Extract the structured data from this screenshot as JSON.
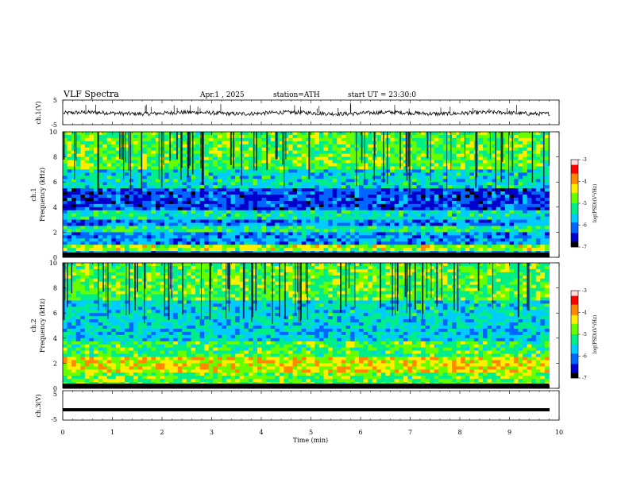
{
  "header": {
    "title": "VLF Spectra",
    "date": "Apr.1 , 2025",
    "station": "station=ATH",
    "start": "start UT = 23:30:0"
  },
  "colors": {
    "colormap": [
      "#000000",
      "#0000cc",
      "#0066ff",
      "#00ccff",
      "#00ee88",
      "#66ff00",
      "#ffee00",
      "#ff8800",
      "#ff0000",
      "#ffdddd"
    ],
    "trace": "#000000"
  },
  "chart_data": [
    {
      "type": "line",
      "panel": "ch1",
      "ylabel": "ch.1(V)",
      "ylim": [
        -5,
        5
      ],
      "yticks": [
        "5",
        "-5"
      ],
      "xlim": [
        0,
        10
      ],
      "series": [
        {
          "values_summary": "noisy waveform oscillating around -0.3 V with occasional spikes up to ~4 V"
        }
      ]
    },
    {
      "type": "heatmap",
      "panel": "ch1-spectrogram",
      "ylabel": [
        "ch.1",
        "Frequency (kHz)"
      ],
      "ylim": [
        0,
        10
      ],
      "yticks": [
        "0",
        "2",
        "4",
        "6",
        "8",
        "10"
      ],
      "xlim": [
        0,
        9.8
      ],
      "colorbar": {
        "label": "log(PSD)(V²/Hz)",
        "range": [
          -7,
          -3
        ],
        "ticks": [
          "-3",
          "-4",
          "-5",
          "-6",
          "-7"
        ]
      },
      "profile": [
        {
          "f": [
            0,
            0.3
          ],
          "level": -7
        },
        {
          "f": [
            0.3,
            0.6
          ],
          "level": -5.8
        },
        {
          "f": [
            0.6,
            1.0
          ],
          "level": -4.6
        },
        {
          "f": [
            1.0,
            1.9
          ],
          "level": -5.9
        },
        {
          "f": [
            1.9,
            2.4
          ],
          "level": -5.2
        },
        {
          "f": [
            2.4,
            3.0
          ],
          "level": -6.0
        },
        {
          "f": [
            3.0,
            3.8
          ],
          "level": -5.4
        },
        {
          "f": [
            3.8,
            5.6
          ],
          "level": -6.3
        },
        {
          "f": [
            5.6,
            7.0
          ],
          "level": -5.5
        },
        {
          "f": [
            7.0,
            10.0
          ],
          "level": -4.9
        }
      ]
    },
    {
      "type": "heatmap",
      "panel": "ch2-spectrogram",
      "ylabel": [
        "ch.2",
        "Frequency (kHz)"
      ],
      "ylim": [
        0,
        10
      ],
      "yticks": [
        "0",
        "2",
        "4",
        "6",
        "8",
        "10"
      ],
      "xlim": [
        0,
        9.8
      ],
      "colorbar": {
        "label": "log(PSD)(V²/Hz)",
        "range": [
          -7,
          -3
        ],
        "ticks": [
          "-3",
          "-4",
          "-5",
          "-6",
          "-7"
        ]
      },
      "profile": [
        {
          "f": [
            0,
            0.3
          ],
          "level": -7
        },
        {
          "f": [
            0.3,
            1.2
          ],
          "level": -4.9
        },
        {
          "f": [
            1.2,
            2.5
          ],
          "level": -4.4
        },
        {
          "f": [
            2.5,
            3.8
          ],
          "level": -5.0
        },
        {
          "f": [
            3.8,
            5.5
          ],
          "level": -5.6
        },
        {
          "f": [
            5.5,
            7.0
          ],
          "level": -5.5
        },
        {
          "f": [
            7.0,
            10.0
          ],
          "level": -4.9
        }
      ]
    },
    {
      "type": "line",
      "panel": "ch3",
      "ylabel": "ch.3(V)",
      "ylim": [
        -5,
        5
      ],
      "yticks": [
        "5",
        "-5"
      ],
      "xlim": [
        0,
        10
      ],
      "series": [
        {
          "values_summary": "flat thick trace at about -1.5 V"
        }
      ],
      "xlabel": "Time (min)",
      "xticks": [
        "0",
        "1",
        "2",
        "3",
        "4",
        "5",
        "6",
        "7",
        "8",
        "9",
        "10"
      ]
    }
  ]
}
